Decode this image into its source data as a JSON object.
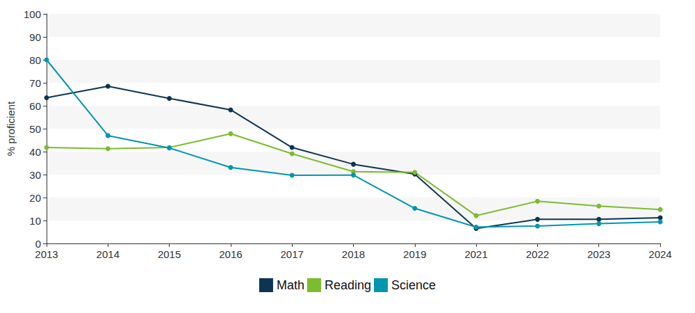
{
  "chart_data": {
    "type": "line",
    "y_label": "% proficient",
    "categories": [
      "2013",
      "2014",
      "2015",
      "2016",
      "2017",
      "2018",
      "2019",
      "2021",
      "2022",
      "2023",
      "2024"
    ],
    "series": [
      {
        "name": "Math",
        "color": "#0d3552",
        "values": [
          63.5,
          68.5,
          63.2,
          58.2,
          41.8,
          34.5,
          30.2,
          6.5,
          10.5,
          10.5,
          11.2
        ]
      },
      {
        "name": "Reading",
        "color": "#7dbb2f",
        "values": [
          41.8,
          41.3,
          41.8,
          47.8,
          39.1,
          31.3,
          31.0,
          12.1,
          18.4,
          16.3,
          14.8
        ]
      },
      {
        "name": "Science",
        "color": "#0096b0",
        "values": [
          80.0,
          47.0,
          41.6,
          33.1,
          29.7,
          29.8,
          15.3,
          7.1,
          7.6,
          8.6,
          9.4
        ]
      }
    ],
    "ylim": [
      0,
      100
    ],
    "yticks": [
      0,
      10,
      20,
      30,
      40,
      50,
      60,
      70,
      80,
      90,
      100
    ],
    "grid": true,
    "legend": "bottom",
    "marker": "circle"
  }
}
